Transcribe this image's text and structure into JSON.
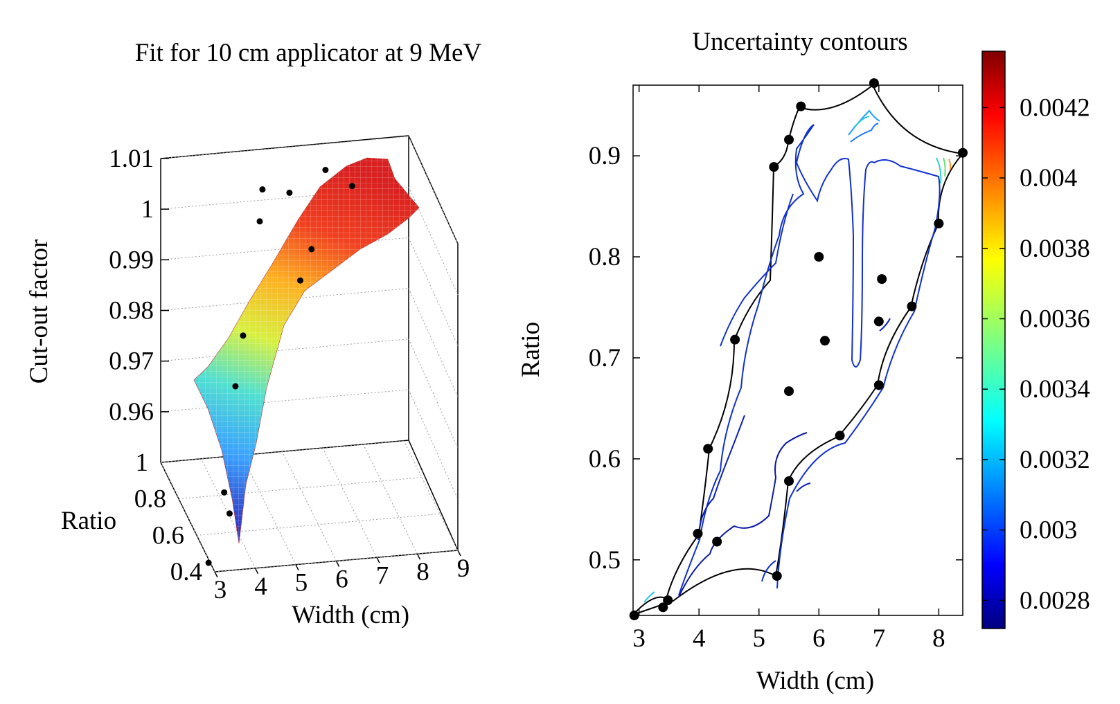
{
  "chart_data": [
    {
      "type": "surface3d",
      "title": "Fit for 10 cm applicator at 9 MeV",
      "xlabel": "Width (cm)",
      "ylabel": "Ratio",
      "zlabel": "Cut-out factor",
      "xlim": [
        3,
        9
      ],
      "ylim": [
        0.4,
        1.0
      ],
      "zlim": [
        0.95,
        1.01
      ],
      "x_ticks": [
        "3",
        "4",
        "5",
        "6",
        "7",
        "8",
        "9"
      ],
      "y_ticks": [
        "0.4",
        "0.6",
        "0.8",
        "1"
      ],
      "z_ticks": [
        "0.96",
        "0.97",
        "0.98",
        "0.99",
        "1",
        "1.01"
      ],
      "colormap": "jet",
      "points": [
        {
          "width": 2.96,
          "ratio": 0.45,
          "factor": 0.95
        },
        {
          "width": 3.5,
          "ratio": 0.46,
          "factor": 0.959
        },
        {
          "width": 3.5,
          "ratio": 0.52,
          "factor": 0.961
        },
        {
          "width": 4.0,
          "ratio": 0.62,
          "factor": 0.978
        },
        {
          "width": 4.3,
          "ratio": 0.67,
          "factor": 0.986
        },
        {
          "width": 5.2,
          "ratio": 0.89,
          "factor": 1.0
        },
        {
          "width": 5.4,
          "ratio": 0.95,
          "factor": 1.004
        },
        {
          "width": 6.0,
          "ratio": 0.8,
          "factor": 0.991
        },
        {
          "width": 6.0,
          "ratio": 0.92,
          "factor": 1.004
        },
        {
          "width": 6.1,
          "ratio": 0.72,
          "factor": 1.0
        },
        {
          "width": 7.0,
          "ratio": 0.97,
          "factor": 1.006
        },
        {
          "width": 7.5,
          "ratio": 0.9,
          "factor": 1.005
        }
      ]
    },
    {
      "type": "contour",
      "title": "Uncertainty contours",
      "xlabel": "Width (cm)",
      "ylabel": "Ratio",
      "xlim": [
        2.9,
        8.4
      ],
      "ylim": [
        0.445,
        0.97
      ],
      "x_ticks": [
        3,
        4,
        5,
        6,
        7,
        8
      ],
      "y_ticks": [
        0.5,
        0.6,
        0.7,
        0.8,
        0.9
      ],
      "y_tick_labels": [
        "0.5",
        "0.6",
        "0.7",
        "0.8",
        "0.9"
      ],
      "colorbar": {
        "min": 0.00272,
        "max": 0.00436,
        "ticks": [
          0.0028,
          0.003,
          0.0032,
          0.0034,
          0.0036,
          0.0038,
          0.004,
          0.0042
        ],
        "tick_labels": [
          "0.0028",
          "0.003",
          "0.0032",
          "0.0034",
          "0.0036",
          "0.0038",
          "0.004",
          "0.0042"
        ],
        "colormap": "jet"
      },
      "points": [
        {
          "x": 2.92,
          "y": 0.445
        },
        {
          "x": 3.4,
          "y": 0.453
        },
        {
          "x": 3.48,
          "y": 0.46
        },
        {
          "x": 3.98,
          "y": 0.526
        },
        {
          "x": 4.3,
          "y": 0.518
        },
        {
          "x": 4.15,
          "y": 0.61
        },
        {
          "x": 4.6,
          "y": 0.718
        },
        {
          "x": 5.25,
          "y": 0.889
        },
        {
          "x": 5.5,
          "y": 0.916
        },
        {
          "x": 5.7,
          "y": 0.949
        },
        {
          "x": 6.92,
          "y": 0.972
        },
        {
          "x": 8.4,
          "y": 0.903
        },
        {
          "x": 8.0,
          "y": 0.833
        },
        {
          "x": 7.55,
          "y": 0.751
        },
        {
          "x": 7.0,
          "y": 0.673
        },
        {
          "x": 6.35,
          "y": 0.623
        },
        {
          "x": 5.5,
          "y": 0.578
        },
        {
          "x": 5.3,
          "y": 0.484
        },
        {
          "x": 6.0,
          "y": 0.8
        },
        {
          "x": 6.1,
          "y": 0.717
        },
        {
          "x": 5.5,
          "y": 0.667
        },
        {
          "x": 7.05,
          "y": 0.778
        },
        {
          "x": 7.0,
          "y": 0.736
        }
      ]
    }
  ]
}
